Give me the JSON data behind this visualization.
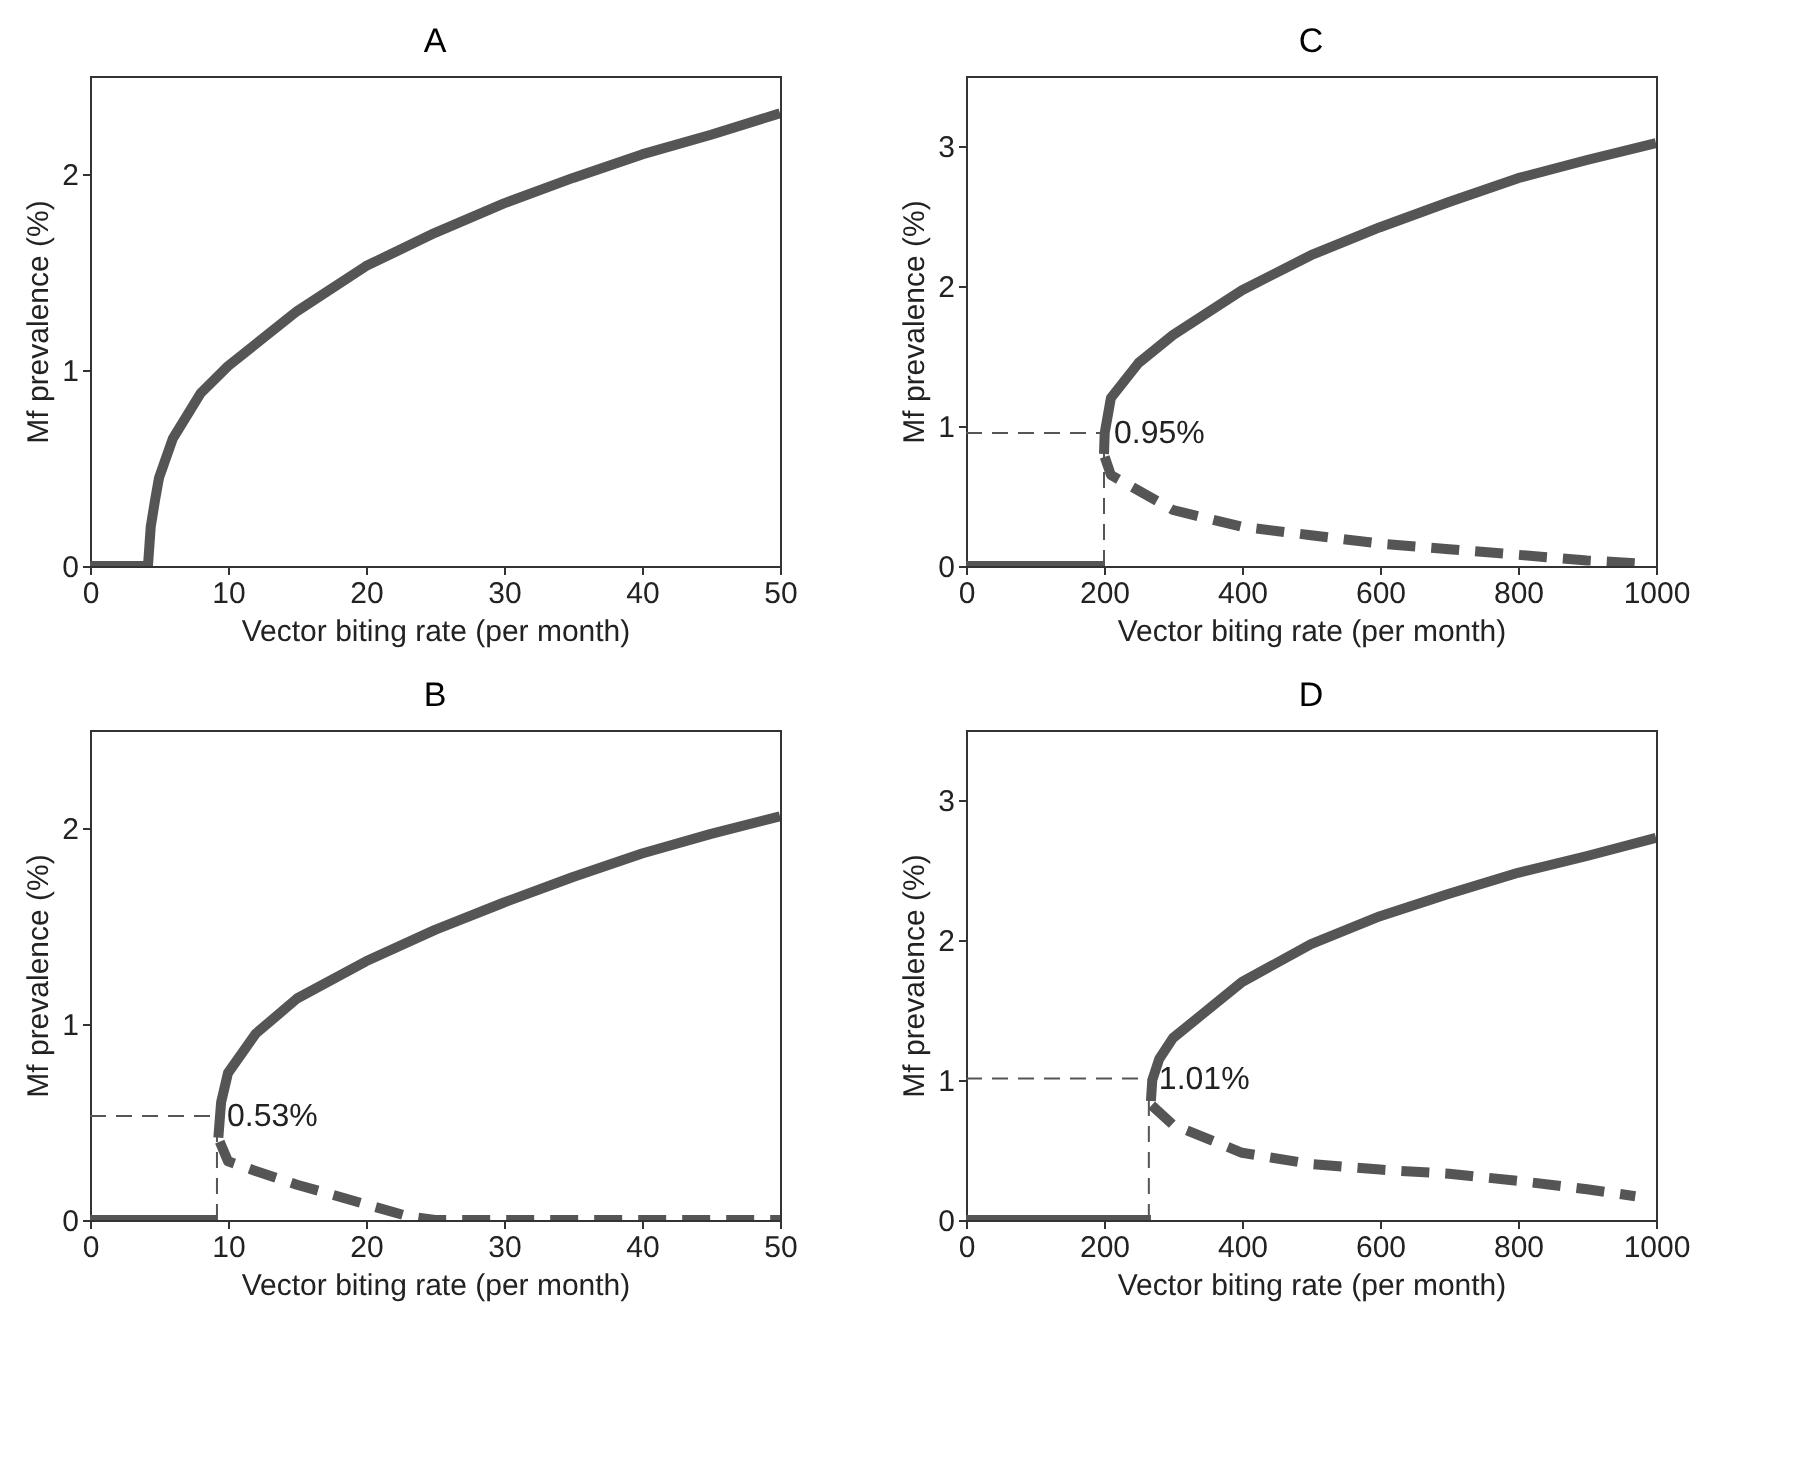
{
  "chart_data": [
    {
      "type": "line",
      "title": "A",
      "xlabel": "Vector biting rate (per month)",
      "ylabel": "Mf prevalence (%)",
      "xlim": [
        0,
        50
      ],
      "xticks": [
        0,
        10,
        20,
        30,
        40,
        50
      ],
      "ylim": [
        0,
        2.5
      ],
      "yticks": [
        0,
        1,
        2
      ],
      "series": [
        {
          "color": "#555555",
          "line_style": "solid",
          "x": [
            0,
            4.2,
            4.4,
            4.7,
            5,
            6,
            8,
            10,
            15,
            20,
            25,
            30,
            35,
            40,
            45,
            50
          ],
          "values": [
            0,
            0,
            0.2,
            0.33,
            0.45,
            0.65,
            0.88,
            1.02,
            1.3,
            1.53,
            1.7,
            1.85,
            1.98,
            2.1,
            2.2,
            2.31
          ]
        }
      ]
    },
    {
      "type": "line",
      "title": "C",
      "xlabel": "Vector biting rate (per month)",
      "ylabel": "Mf prevalence (%)",
      "xlim": [
        0,
        1000
      ],
      "xticks": [
        0,
        200,
        400,
        600,
        800,
        1000
      ],
      "ylim": [
        0,
        3.5
      ],
      "yticks": [
        0,
        1,
        2,
        3
      ],
      "annotations": [
        {
          "text": "0.95%",
          "x": 200,
          "y": 0.95
        }
      ],
      "series": [
        {
          "color": "#555555",
          "line_style": "solid",
          "x": [
            0,
            200
          ],
          "values": [
            0,
            0
          ]
        },
        {
          "color": "#555555",
          "line_style": "solid",
          "x": [
            200,
            201,
            210,
            250,
            300,
            400,
            500,
            600,
            700,
            800,
            900,
            1000
          ],
          "values": [
            0.8,
            0.95,
            1.2,
            1.45,
            1.65,
            1.97,
            2.22,
            2.42,
            2.6,
            2.77,
            2.9,
            3.02
          ]
        },
        {
          "color": "#555555",
          "line_style": "dashed",
          "x": [
            201,
            210,
            300,
            400,
            500,
            600,
            700,
            800,
            900,
            970
          ],
          "values": [
            0.78,
            0.65,
            0.4,
            0.28,
            0.22,
            0.16,
            0.12,
            0.08,
            0.04,
            0.02
          ]
        }
      ]
    },
    {
      "type": "line",
      "title": "B",
      "xlabel": "Vector biting rate (per month)",
      "ylabel": "Mf prevalence (%)",
      "xlim": [
        0,
        50
      ],
      "xticks": [
        0,
        10,
        20,
        30,
        40,
        50
      ],
      "ylim": [
        0,
        2.5
      ],
      "yticks": [
        0,
        1,
        2
      ],
      "annotations": [
        {
          "text": "0.53%",
          "x": 9.2,
          "y": 0.53
        }
      ],
      "series": [
        {
          "color": "#555555",
          "line_style": "solid",
          "x": [
            0,
            9.2
          ],
          "values": [
            0,
            0
          ]
        },
        {
          "color": "#555555",
          "line_style": "solid",
          "x": [
            9.3,
            9.5,
            10,
            12,
            15,
            20,
            25,
            30,
            35,
            40,
            45,
            50
          ],
          "values": [
            0.42,
            0.6,
            0.75,
            0.95,
            1.13,
            1.32,
            1.48,
            1.62,
            1.75,
            1.87,
            1.97,
            2.06
          ]
        },
        {
          "color": "#555555",
          "line_style": "dashed",
          "x": [
            9.4,
            10,
            12,
            15,
            20,
            23,
            25,
            30,
            40,
            50
          ],
          "values": [
            0.4,
            0.3,
            0.25,
            0.18,
            0.08,
            0.02,
            0,
            0,
            0,
            0
          ]
        }
      ]
    },
    {
      "type": "line",
      "title": "D",
      "xlabel": "Vector biting rate (per month)",
      "ylabel": "Mf prevalence (%)",
      "xlim": [
        0,
        1000
      ],
      "xticks": [
        0,
        200,
        400,
        600,
        800,
        1000
      ],
      "ylim": [
        0,
        3.5
      ],
      "yticks": [
        0,
        1,
        2,
        3
      ],
      "annotations": [
        {
          "text": "1.01%",
          "x": 265,
          "y": 1.01
        }
      ],
      "series": [
        {
          "color": "#555555",
          "line_style": "solid",
          "x": [
            0,
            268
          ],
          "values": [
            0,
            0
          ]
        },
        {
          "color": "#555555",
          "line_style": "solid",
          "x": [
            268,
            270,
            280,
            300,
            400,
            500,
            600,
            700,
            800,
            900,
            1000
          ],
          "values": [
            0.85,
            1.0,
            1.15,
            1.3,
            1.7,
            1.97,
            2.17,
            2.33,
            2.48,
            2.6,
            2.73
          ]
        },
        {
          "color": "#555555",
          "line_style": "dashed",
          "x": [
            269,
            300,
            400,
            500,
            600,
            700,
            800,
            900,
            970
          ],
          "values": [
            0.82,
            0.68,
            0.48,
            0.4,
            0.36,
            0.33,
            0.28,
            0.22,
            0.17
          ]
        }
      ]
    }
  ]
}
